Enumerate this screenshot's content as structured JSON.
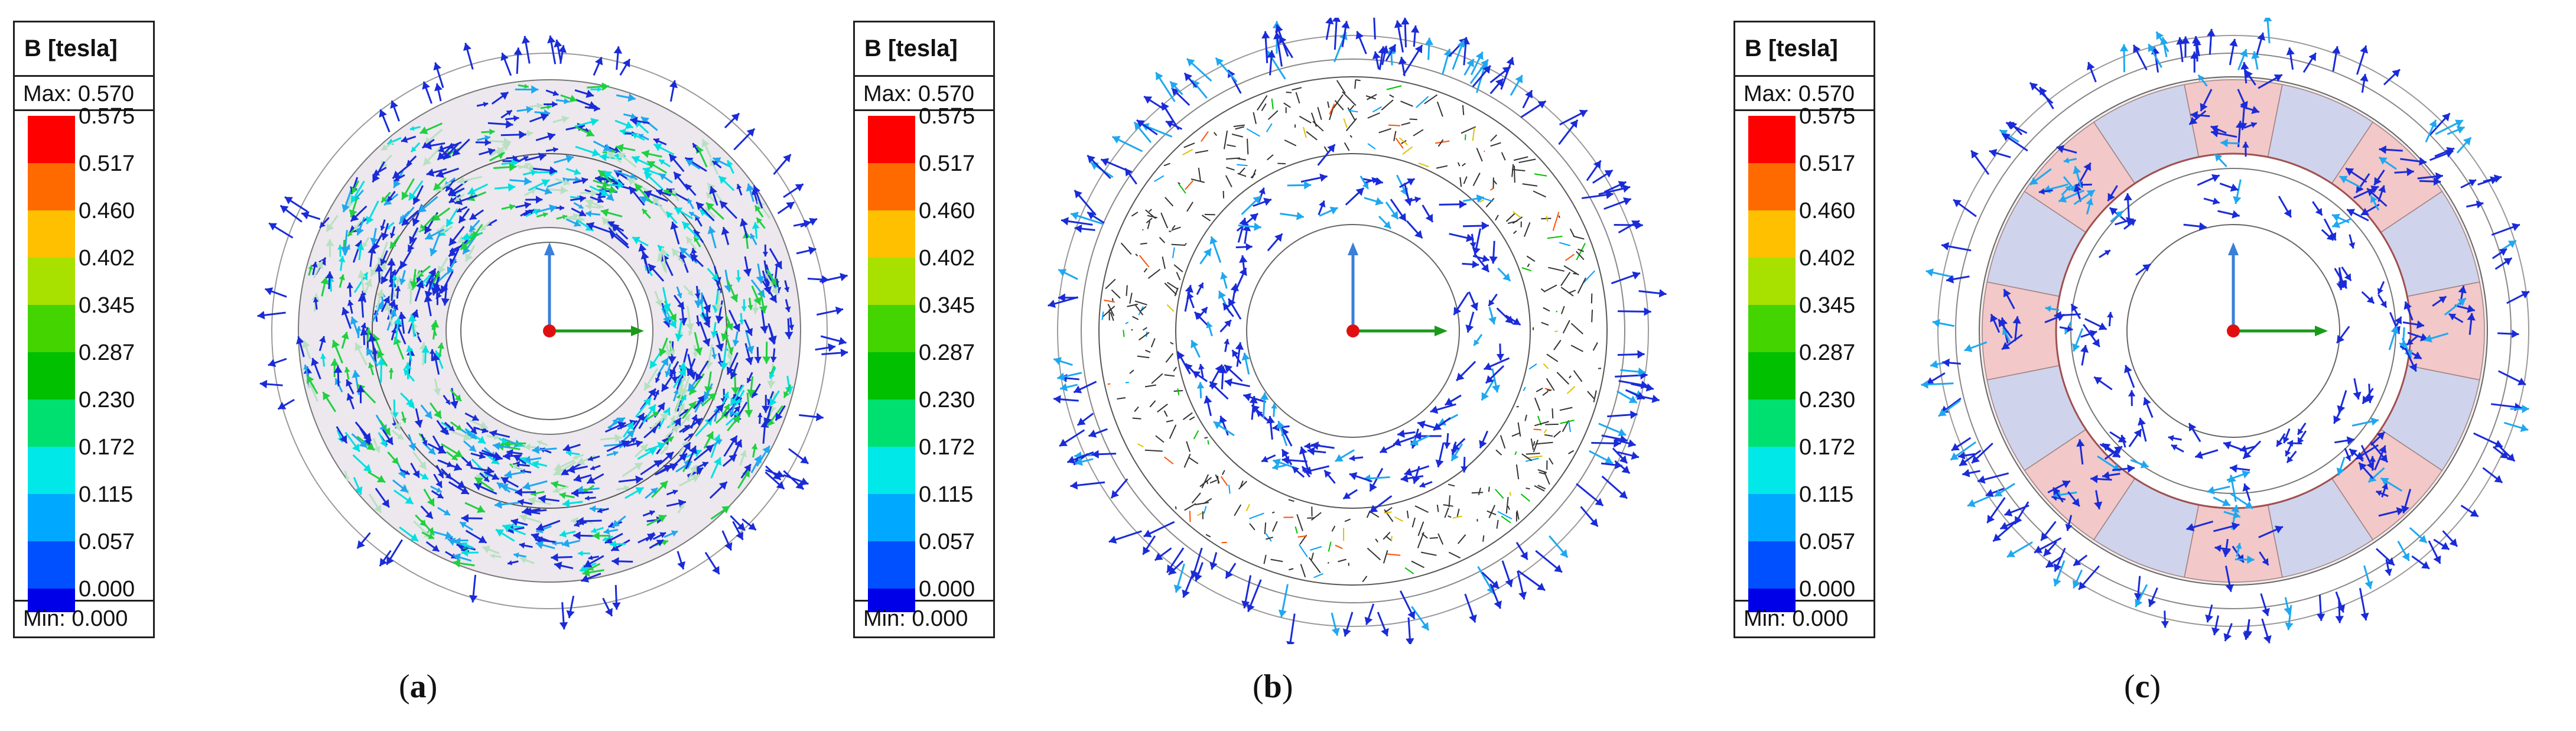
{
  "legend": {
    "title": "B [tesla]",
    "max_label": "Max: 0.570",
    "min_label": "Min: 0.000",
    "ticks": [
      "0.575",
      "0.517",
      "0.460",
      "0.402",
      "0.345",
      "0.287",
      "0.230",
      "0.172",
      "0.115",
      "0.057",
      "0.000"
    ],
    "colors": [
      "#ff0000",
      "#ff6a00",
      "#ffc000",
      "#a8e000",
      "#44d400",
      "#00c000",
      "#00e070",
      "#00e8e8",
      "#00a8ff",
      "#0050ff",
      "#0000e8"
    ]
  },
  "panels": [
    {
      "label": "a"
    },
    {
      "label": "b"
    },
    {
      "label": "c"
    }
  ],
  "colors": {
    "arrow_low": "#1a2bd8",
    "arrow_mid": "#1fa8f0",
    "axis_x": "#1a9a1a",
    "axis_z": "#3a7fd8",
    "origin": "#e01010",
    "magnet_red": "#f2c8c8",
    "magnet_blue": "#cfd4ec",
    "rotor_fill": "#ece8ee"
  }
}
